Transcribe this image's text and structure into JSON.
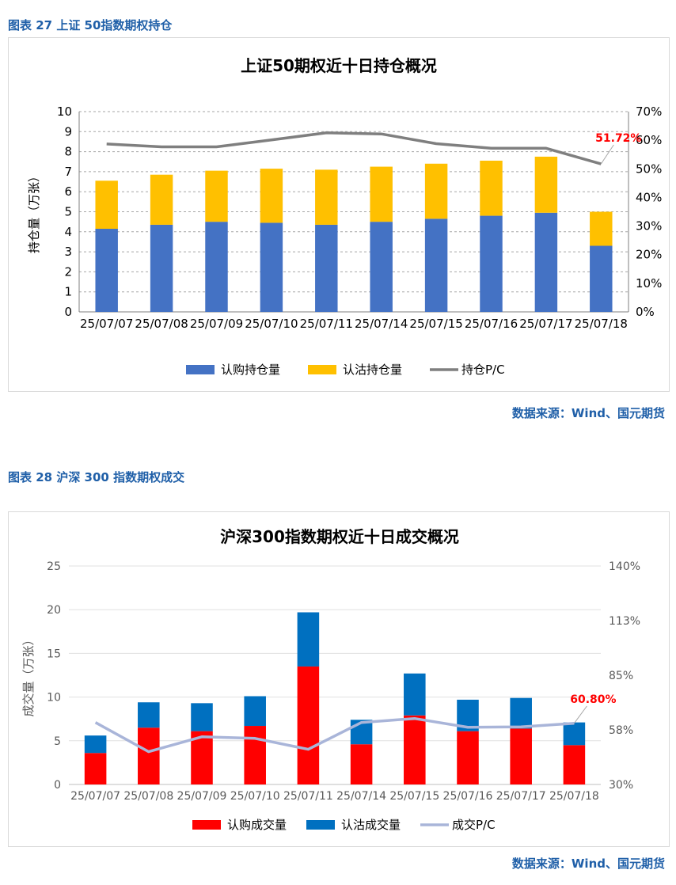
{
  "figure1": {
    "caption": "图表 27 上证 50指数期权持仓",
    "source": "数据来源：Wind、国元期货"
  },
  "figure2": {
    "caption": "图表 28 沪深 300 指数期权成交",
    "source": "数据来源：Wind、国元期货"
  },
  "chart_data": [
    {
      "type": "bar",
      "stacked": true,
      "title": "上证50期权近十日持仓概况",
      "ylabel": "持仓量（万张）",
      "ylim": [
        0,
        10
      ],
      "y2lim": [
        0,
        0.7
      ],
      "yticks": [
        "0",
        "1",
        "2",
        "3",
        "4",
        "5",
        "6",
        "7",
        "8",
        "9",
        "10"
      ],
      "y2ticks": [
        "0%",
        "10%",
        "20%",
        "30%",
        "40%",
        "50%",
        "60%",
        "70%"
      ],
      "categories": [
        "25/07/07",
        "25/07/08",
        "25/07/09",
        "25/07/10",
        "25/07/11",
        "25/07/14",
        "25/07/15",
        "25/07/16",
        "25/07/17",
        "25/07/18"
      ],
      "series": [
        {
          "name": "认购持仓量",
          "kind": "bar",
          "color": "#4472c4",
          "values": [
            4.15,
            4.35,
            4.5,
            4.45,
            4.35,
            4.5,
            4.65,
            4.8,
            4.95,
            3.3
          ]
        },
        {
          "name": "认沽持仓量",
          "kind": "bar",
          "color": "#ffc000",
          "values": [
            2.4,
            2.5,
            2.55,
            2.7,
            2.75,
            2.75,
            2.75,
            2.75,
            2.8,
            1.7
          ]
        },
        {
          "name": "持仓P/C",
          "kind": "line",
          "axis": "right",
          "color": "#7f7f7f",
          "values": [
            0.587,
            0.577,
            0.577,
            0.601,
            0.626,
            0.622,
            0.588,
            0.572,
            0.572,
            0.5172
          ]
        }
      ],
      "annotation": {
        "text": "51.72%",
        "color": "#ff0000"
      },
      "grid": true,
      "legend": "bottom"
    },
    {
      "type": "bar",
      "stacked": true,
      "title": "沪深300指数期权近十日成交概况",
      "ylabel": "成交量（万张）",
      "ylim": [
        0,
        25
      ],
      "y2lim": [
        0.3,
        1.4
      ],
      "yticks": [
        "0",
        "5",
        "10",
        "15",
        "20",
        "25"
      ],
      "y2ticks": [
        "30%",
        "58%",
        "85%",
        "113%",
        "140%"
      ],
      "categories": [
        "25/07/07",
        "25/07/08",
        "25/07/09",
        "25/07/10",
        "25/07/11",
        "25/07/14",
        "25/07/15",
        "25/07/16",
        "25/07/17",
        "25/07/18"
      ],
      "series": [
        {
          "name": "认购成交量",
          "kind": "bar",
          "color": "#ff0000",
          "values": [
            3.6,
            6.5,
            6.1,
            6.7,
            13.5,
            4.6,
            7.9,
            6.1,
            6.4,
            4.5
          ]
        },
        {
          "name": "认沽成交量",
          "kind": "bar",
          "color": "#0070c0",
          "values": [
            2.0,
            2.9,
            3.2,
            3.4,
            6.2,
            2.8,
            4.8,
            3.6,
            3.5,
            2.6
          ]
        },
        {
          "name": "成交P/C",
          "kind": "line",
          "axis": "right",
          "color": "#a9b5d9",
          "values": [
            0.612,
            0.465,
            0.54,
            0.532,
            0.477,
            0.612,
            0.632,
            0.588,
            0.59,
            0.608
          ]
        }
      ],
      "annotation": {
        "text": "60.80%",
        "color": "#ff0000"
      },
      "grid": true,
      "legend": "bottom"
    }
  ]
}
